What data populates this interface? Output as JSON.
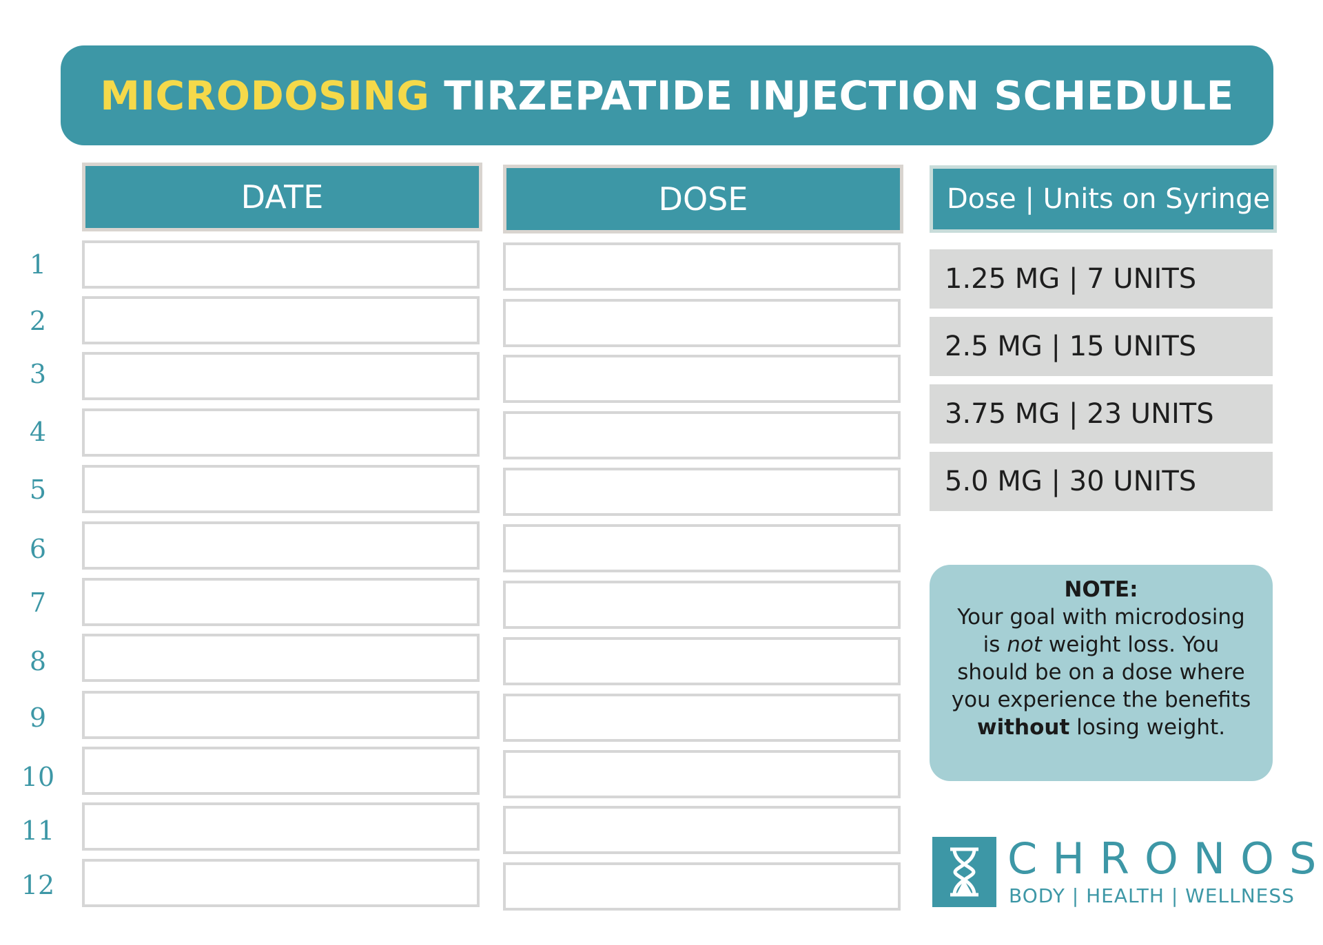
{
  "title": {
    "highlight": "MICRODOSING",
    "rest": " TIRZEPATIDE INJECTION SCHEDULE",
    "highlight_color": "#f5d94a",
    "banner_color": "#3d97a6"
  },
  "columns": {
    "date": "DATE",
    "dose": "DOSE",
    "reference": "Dose | Units on Syringe"
  },
  "rows": [
    "1",
    "2",
    "3",
    "4",
    "5",
    "6",
    "7",
    "8",
    "9",
    "10",
    "11",
    "12"
  ],
  "dose_reference": [
    "1.25 MG | 7 UNITS",
    "2.5 MG | 15 UNITS",
    "3.75 MG | 23 UNITS",
    "5.0 MG | 30 UNITS"
  ],
  "note": {
    "title": "NOTE:",
    "part1": "Your goal with microdosing is ",
    "emphasis": "not",
    "part2": " weight loss. You should be on a dose where you experience the benefits ",
    "strong": "without",
    "part3": " losing weight."
  },
  "brand": {
    "name": "CHRONOS",
    "tagline": "BODY | HEALTH | WELLNESS",
    "icon": "hourglass-icon"
  }
}
